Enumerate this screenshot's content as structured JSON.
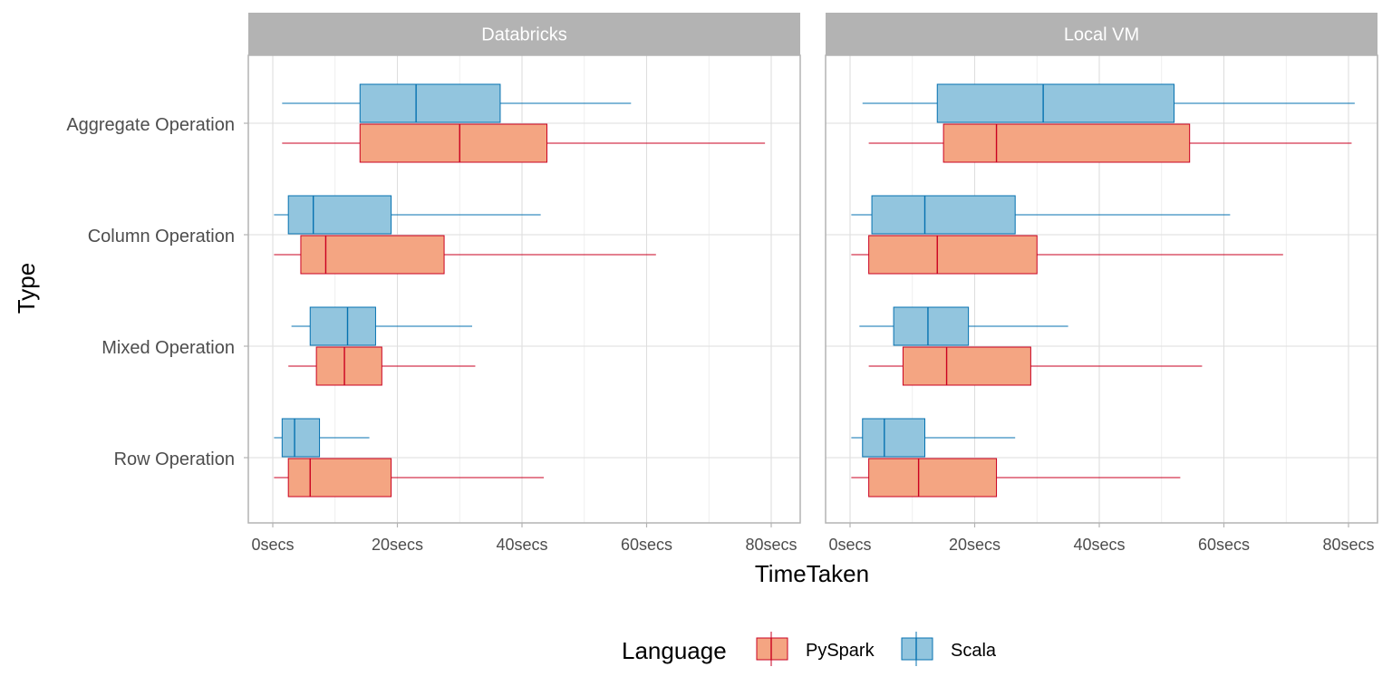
{
  "chart_data": {
    "type": "boxplot",
    "facets": [
      "Databricks",
      "Local VM"
    ],
    "categories": [
      "Aggregate Operation",
      "Column Operation",
      "Mixed Operation",
      "Row Operation"
    ],
    "xlabel": "TimeTaken",
    "ylabel": "Type",
    "xlim": [
      0,
      80
    ],
    "x_ticks": [
      0,
      20,
      40,
      60,
      80
    ],
    "x_tick_labels": [
      "0secs",
      "20secs",
      "40secs",
      "60secs",
      "80secs"
    ],
    "grid": true,
    "legend": {
      "title": "Language",
      "position": "bottom",
      "items": [
        "PySpark",
        "Scala"
      ]
    },
    "series": [
      {
        "name": "PySpark",
        "fill": "#f4a582",
        "stroke": "#ca0020",
        "data": {
          "Databricks": {
            "Aggregate Operation": {
              "min": 1.5,
              "q1": 14,
              "median": 30,
              "q3": 44,
              "max": 79
            },
            "Column Operation": {
              "min": 0.2,
              "q1": 4.5,
              "median": 8.5,
              "q3": 27.5,
              "max": 61.5
            },
            "Mixed Operation": {
              "min": 2.5,
              "q1": 7,
              "median": 11.5,
              "q3": 17.5,
              "max": 32.5
            },
            "Row Operation": {
              "min": 0.2,
              "q1": 2.5,
              "median": 6,
              "q3": 19,
              "max": 43.5
            }
          },
          "Local VM": {
            "Aggregate Operation": {
              "min": 3,
              "q1": 15,
              "median": 23.5,
              "q3": 54.5,
              "max": 80.5
            },
            "Column Operation": {
              "min": 0.2,
              "q1": 3,
              "median": 14,
              "q3": 30,
              "max": 69.5
            },
            "Mixed Operation": {
              "min": 3,
              "q1": 8.5,
              "median": 15.5,
              "q3": 29,
              "max": 56.5
            },
            "Row Operation": {
              "min": 0.2,
              "q1": 3,
              "median": 11,
              "q3": 23.5,
              "max": 53
            }
          }
        }
      },
      {
        "name": "Scala",
        "fill": "#92c5de",
        "stroke": "#0571b0",
        "data": {
          "Databricks": {
            "Aggregate Operation": {
              "min": 1.5,
              "q1": 14,
              "median": 23,
              "q3": 36.5,
              "max": 57.5
            },
            "Column Operation": {
              "min": 0.2,
              "q1": 2.5,
              "median": 6.5,
              "q3": 19,
              "max": 43
            },
            "Mixed Operation": {
              "min": 3,
              "q1": 6,
              "median": 12,
              "q3": 16.5,
              "max": 32
            },
            "Row Operation": {
              "min": 0.2,
              "q1": 1.5,
              "median": 3.5,
              "q3": 7.5,
              "max": 15.5
            }
          },
          "Local VM": {
            "Aggregate Operation": {
              "min": 2,
              "q1": 14,
              "median": 31,
              "q3": 52,
              "max": 81
            },
            "Column Operation": {
              "min": 0.2,
              "q1": 3.5,
              "median": 12,
              "q3": 26.5,
              "max": 61
            },
            "Mixed Operation": {
              "min": 1.5,
              "q1": 7,
              "median": 12.5,
              "q3": 19,
              "max": 35
            },
            "Row Operation": {
              "min": 0.2,
              "q1": 2,
              "median": 5.5,
              "q3": 12,
              "max": 26.5
            }
          }
        }
      }
    ]
  }
}
